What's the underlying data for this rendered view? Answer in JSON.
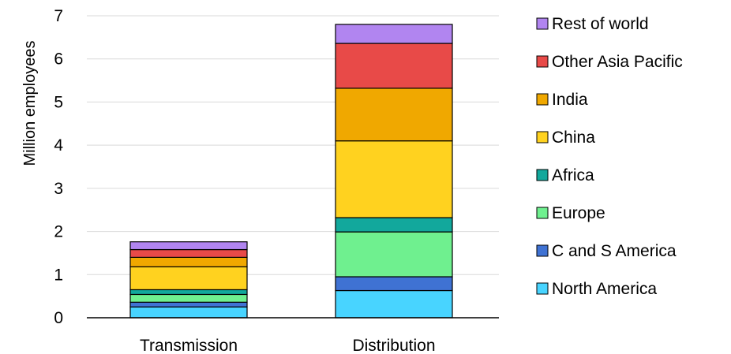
{
  "chart_data": {
    "type": "bar",
    "stacked": true,
    "title": "",
    "xlabel": "",
    "ylabel": "Million employees",
    "ylim": [
      0,
      7
    ],
    "yticks": [
      0,
      1,
      2,
      3,
      4,
      5,
      6,
      7
    ],
    "grid": true,
    "legend_position": "right",
    "categories": [
      "Transmission",
      "Distribution"
    ],
    "series": [
      {
        "name": "North America",
        "color": "#48d4ff",
        "values": [
          0.25,
          0.63
        ]
      },
      {
        "name": "C and S America",
        "color": "#3f72d3",
        "values": [
          0.11,
          0.32
        ]
      },
      {
        "name": "Europe",
        "color": "#6ff08f",
        "values": [
          0.18,
          1.04
        ]
      },
      {
        "name": "Africa",
        "color": "#12a89c",
        "values": [
          0.11,
          0.33
        ]
      },
      {
        "name": "China",
        "color": "#ffd21f",
        "values": [
          0.53,
          1.78
        ]
      },
      {
        "name": "India",
        "color": "#f0a800",
        "values": [
          0.22,
          1.22
        ]
      },
      {
        "name": "Other Asia Pacific",
        "color": "#e84a48",
        "values": [
          0.18,
          1.04
        ]
      },
      {
        "name": "Rest of world",
        "color": "#b185f0",
        "values": [
          0.18,
          0.44
        ]
      }
    ]
  }
}
